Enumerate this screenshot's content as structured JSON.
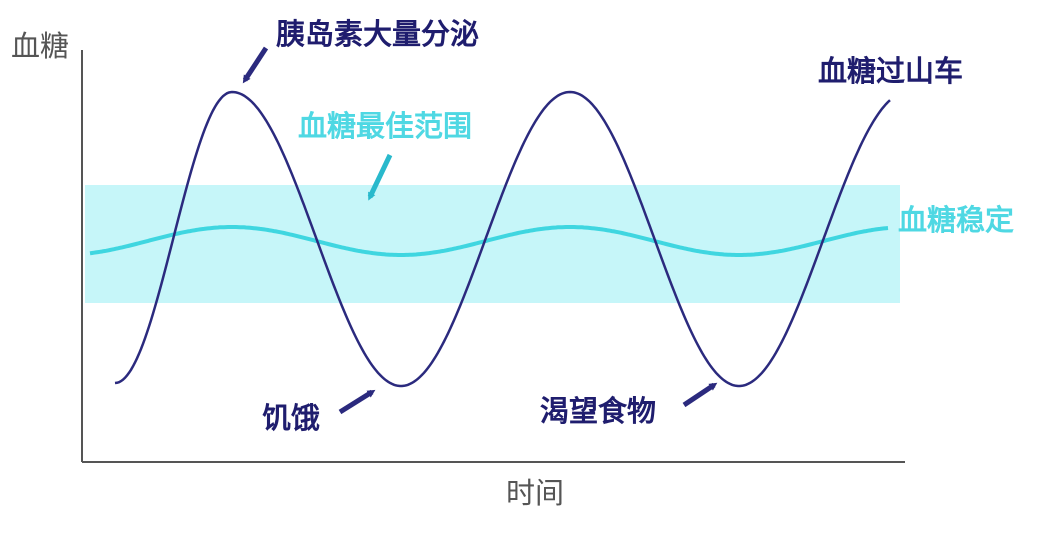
{
  "axis": {
    "y_label": "血糖",
    "x_label": "时间"
  },
  "annotations": {
    "insulin": "胰岛素大量分泌",
    "roller_coaster": "血糖过山车",
    "optimal_range": "血糖最佳范围",
    "stable": "血糖稳定",
    "hunger": "饥饿",
    "craving": "渴望食物"
  }
}
